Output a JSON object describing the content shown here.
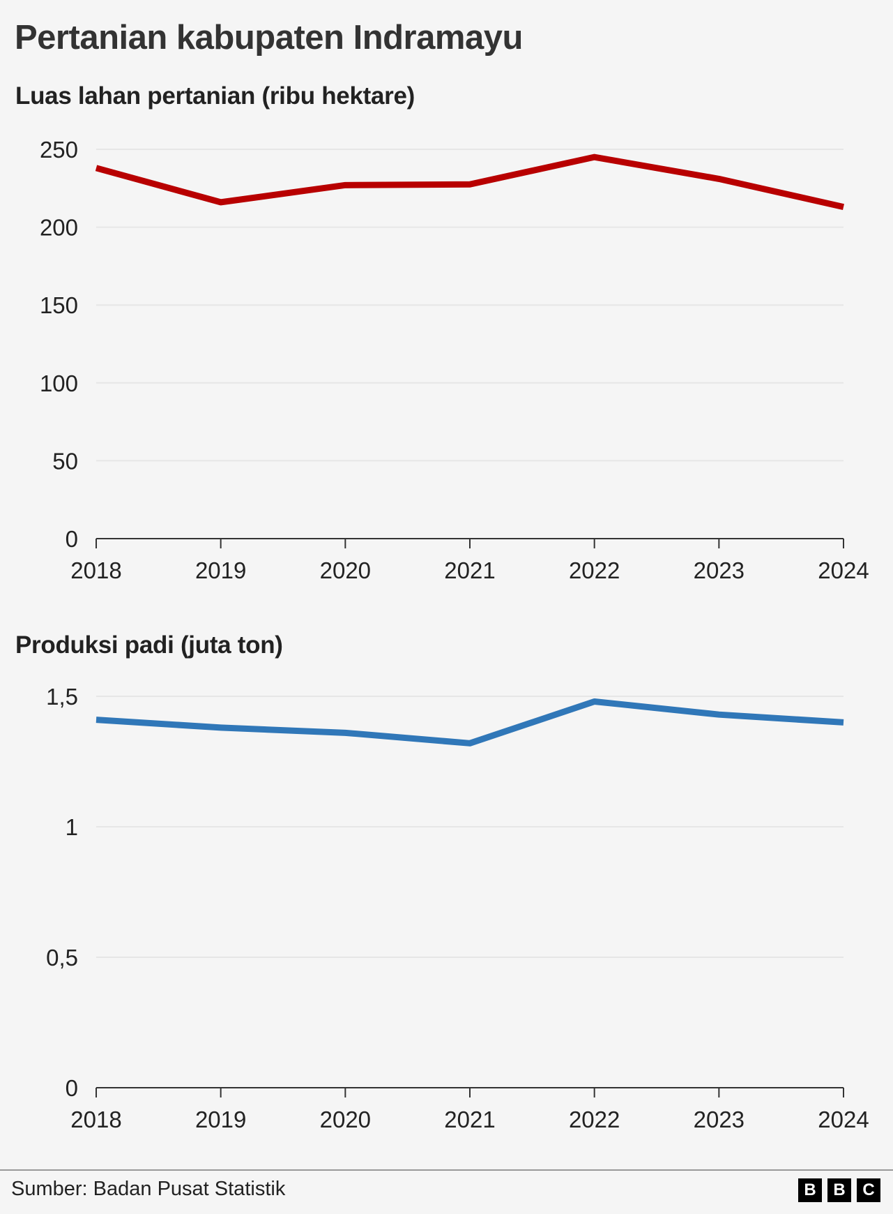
{
  "title": "Pertanian kabupaten Indramayu",
  "source": "Sumber: Badan Pusat Statistik",
  "logo": [
    "B",
    "B",
    "C"
  ],
  "chart_data": [
    {
      "type": "line",
      "title": "Luas lahan pertanian (ribu hektare)",
      "categories": [
        "2018",
        "2019",
        "2020",
        "2021",
        "2022",
        "2023",
        "2024"
      ],
      "values": [
        238,
        216,
        227,
        227.5,
        245,
        231,
        213
      ],
      "ylim": [
        0,
        250
      ],
      "yticks": [
        0,
        50,
        100,
        150,
        200,
        250
      ],
      "ytick_labels": [
        "0",
        "50",
        "100",
        "150",
        "200",
        "250"
      ],
      "color": "#b80000",
      "grid": true
    },
    {
      "type": "line",
      "title": "Produksi padi (juta ton)",
      "categories": [
        "2018",
        "2019",
        "2020",
        "2021",
        "2022",
        "2023",
        "2024"
      ],
      "values": [
        1.41,
        1.38,
        1.36,
        1.32,
        1.48,
        1.43,
        1.4
      ],
      "ylim": [
        0,
        1.5
      ],
      "yticks": [
        0,
        0.5,
        1,
        1.5
      ],
      "ytick_labels": [
        "0",
        "0,5",
        "1",
        "1,5"
      ],
      "color": "#3077b8",
      "grid": true
    }
  ]
}
